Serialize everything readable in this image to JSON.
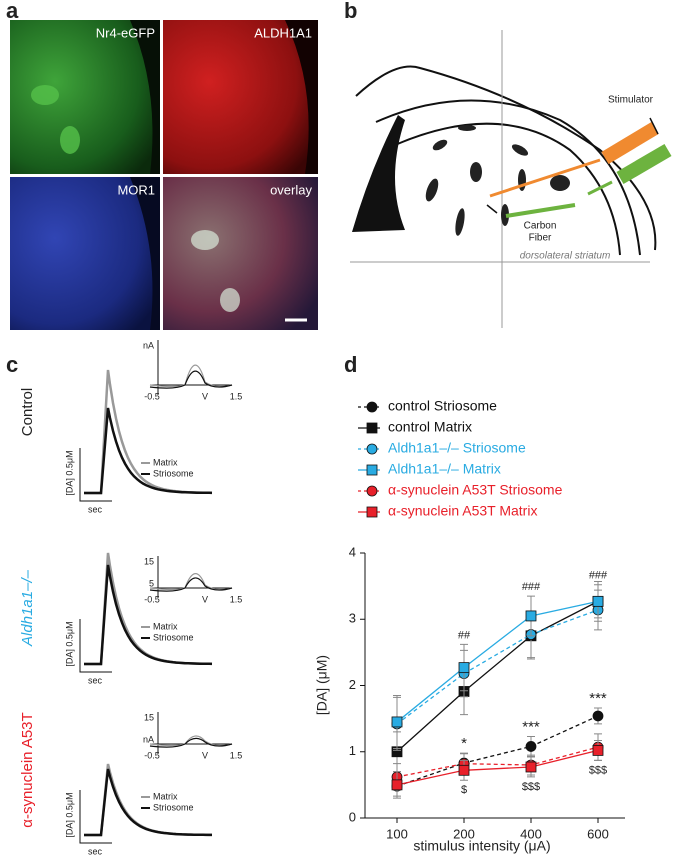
{
  "panel_letters": [
    "a",
    "b",
    "c",
    "d"
  ],
  "panel_a": {
    "labels": [
      "Nr4-eGFP",
      "ALDH1A1",
      "MOR1",
      "overlay"
    ]
  },
  "panel_b": {
    "stimulator": "Stimulator",
    "carbon_fiber": [
      "Carbon",
      "Fiber"
    ],
    "region": "dorsolateral striatum"
  },
  "panel_c": {
    "rows": [
      {
        "label": "Control",
        "scale": "[DA] 0.5μM",
        "time": "sec",
        "legend": [
          "Matrix",
          "Striosome"
        ],
        "inset_y": [
          "nA"
        ],
        "inset_x": [
          "-0.5",
          "V",
          "1.5"
        ]
      },
      {
        "label": "Aldh1a1–/–",
        "scale": "[DA] 0.5μM",
        "time": "sec",
        "legend": [
          "Matrix",
          "Striosome"
        ],
        "inset_y": [
          "15",
          "5"
        ],
        "inset_x": [
          "-0.5",
          "V",
          "1.5"
        ]
      },
      {
        "label": "α-synuclein A53T",
        "scale": "[DA] 0.5μM",
        "time": "sec",
        "legend": [
          "Matrix",
          "Striosome"
        ],
        "inset_y": [
          "15",
          "nA"
        ],
        "inset_x": [
          "-0.5",
          "V",
          "1.5"
        ]
      }
    ]
  },
  "chart_data": {
    "type": "line",
    "categories": [
      "100",
      "200",
      "400",
      "600"
    ],
    "x_label": "stimulus intensity (μA)",
    "y_label": "[DA] (μM)",
    "ylim": [
      0,
      4
    ],
    "yticks": [
      0,
      1,
      2,
      3,
      4
    ],
    "series": [
      {
        "name": "control Striosome",
        "color": "#111111",
        "marker": "circle",
        "dashed": true,
        "values": [
          0.48,
          0.83,
          1.08,
          1.54
        ],
        "errors": [
          0.15,
          0.15,
          0.15,
          0.12
        ]
      },
      {
        "name": "control Matrix",
        "color": "#111111",
        "marker": "square",
        "dashed": false,
        "values": [
          1.0,
          1.91,
          2.75,
          3.27
        ],
        "errors": [
          0.3,
          0.35,
          0.35,
          0.3
        ]
      },
      {
        "name": "Aldh1a1–/– Striosome",
        "color": "#29abe2",
        "marker": "circle",
        "dashed": true,
        "values": [
          1.42,
          2.18,
          2.77,
          3.14
        ],
        "errors": [
          0.4,
          0.35,
          0.35,
          0.3
        ]
      },
      {
        "name": "Aldh1a1–/– Matrix",
        "color": "#29abe2",
        "marker": "square",
        "dashed": false,
        "values": [
          1.45,
          2.27,
          3.05,
          3.27
        ],
        "errors": [
          0.4,
          0.35,
          0.3,
          0.25
        ]
      },
      {
        "name": "α-synuclein A53T Striosome",
        "color": "#e8202a",
        "marker": "circle",
        "dashed": true,
        "values": [
          0.62,
          0.82,
          0.8,
          1.07
        ],
        "errors": [
          0.2,
          0.15,
          0.15,
          0.2
        ]
      },
      {
        "name": "α-synuclein A53T Matrix",
        "color": "#e8202a",
        "marker": "square",
        "dashed": false,
        "values": [
          0.5,
          0.72,
          0.77,
          1.02
        ],
        "errors": [
          0.2,
          0.15,
          0.15,
          0.15
        ]
      }
    ],
    "annotations": [
      {
        "text": "##",
        "category": "200",
        "series": "Aldh1a1–/– Matrix",
        "side": "above"
      },
      {
        "text": "###",
        "category": "400",
        "series": "Aldh1a1–/– Matrix",
        "side": "above"
      },
      {
        "text": "###",
        "category": "600",
        "series": "Aldh1a1–/– Matrix",
        "side": "above"
      },
      {
        "text": "*",
        "category": "200",
        "series": "control Striosome",
        "side": "above"
      },
      {
        "text": "***",
        "category": "400",
        "series": "control Striosome",
        "side": "above"
      },
      {
        "text": "***",
        "category": "600",
        "series": "control Striosome",
        "side": "above"
      },
      {
        "text": "$",
        "category": "200",
        "series": "α-synuclein A53T Matrix",
        "side": "below"
      },
      {
        "text": "$$$",
        "category": "400",
        "series": "α-synuclein A53T Matrix",
        "side": "below"
      },
      {
        "text": "$$$",
        "category": "600",
        "series": "α-synuclein A53T Matrix",
        "side": "below"
      }
    ]
  }
}
